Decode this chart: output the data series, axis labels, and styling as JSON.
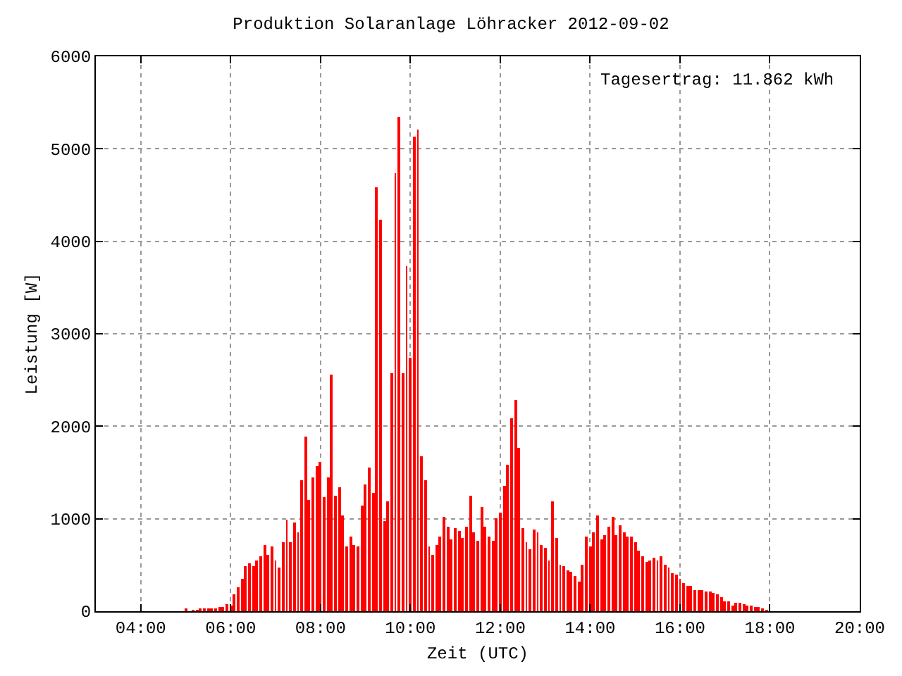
{
  "chart_data": {
    "type": "bar",
    "title": "Produktion Solaranlage Löhracker 2012-09-02",
    "xlabel": "Zeit (UTC)",
    "ylabel": "Leistung [W]",
    "annotations": [
      "Tagesertrag: 11.862 kWh"
    ],
    "x": [
      5,
      5.0833,
      5.1667,
      5.25,
      5.3333,
      5.4167,
      5.5,
      5.5833,
      5.6667,
      5.75,
      5.8333,
      5.9167,
      6,
      6.0833,
      6.1667,
      6.25,
      6.3333,
      6.4167,
      6.5,
      6.5833,
      6.6667,
      6.75,
      6.8333,
      6.9167,
      7,
      7.0833,
      7.1667,
      7.25,
      7.3333,
      7.4167,
      7.5,
      7.5833,
      7.6667,
      7.75,
      7.8333,
      7.9167,
      8,
      8.0833,
      8.1667,
      8.25,
      8.3333,
      8.4167,
      8.5,
      8.5833,
      8.6667,
      8.75,
      8.8333,
      8.9167,
      9,
      9.0833,
      9.1667,
      9.25,
      9.3333,
      9.4167,
      9.5,
      9.5833,
      9.6667,
      9.75,
      9.8333,
      9.9167,
      10,
      10.0833,
      10.1667,
      10.25,
      10.3333,
      10.4167,
      10.5,
      10.5833,
      10.6667,
      10.75,
      10.8333,
      10.9167,
      11,
      11.0833,
      11.1667,
      11.25,
      11.3333,
      11.4167,
      11.5,
      11.5833,
      11.6667,
      11.75,
      11.8333,
      11.9167,
      12,
      12.0833,
      12.1667,
      12.25,
      12.3333,
      12.4167,
      12.5,
      12.5833,
      12.6667,
      12.75,
      12.8333,
      12.9167,
      13,
      13.0833,
      13.1667,
      13.25,
      13.3333,
      13.4167,
      13.5,
      13.5833,
      13.6667,
      13.75,
      13.8333,
      13.9167,
      14,
      14.0833,
      14.1667,
      14.25,
      14.3333,
      14.4167,
      14.5,
      14.5833,
      14.6667,
      14.75,
      14.8333,
      14.9167,
      15,
      15.0833,
      15.1667,
      15.25,
      15.3333,
      15.4167,
      15.5,
      15.5833,
      15.6667,
      15.75,
      15.8333,
      15.9167,
      16,
      16.0833,
      16.1667,
      16.25,
      16.3333,
      16.4167,
      16.5,
      16.5833,
      16.6667,
      16.75,
      16.8333,
      16.9167,
      17,
      17.0833,
      17.1667,
      17.25,
      17.3333,
      17.4167,
      17.5,
      17.5833,
      17.6667,
      17.75,
      17.8333,
      17.9167
    ],
    "values": [
      25,
      null,
      15,
      15,
      20,
      30,
      30,
      30,
      30,
      45,
      45,
      80,
      60,
      180,
      255,
      345,
      495,
      520,
      480,
      555,
      600,
      720,
      615,
      705,
      555,
      465,
      750,
      990,
      750,
      960,
      860,
      1410,
      1890,
      1210,
      1440,
      1575,
      1620,
      1230,
      1440,
      2565,
      1245,
      1335,
      1035,
      705,
      810,
      720,
      705,
      1140,
      1365,
      1560,
      1275,
      4590,
      4230,
      975,
      1185,
      2580,
      4740,
      5340,
      2580,
      3735,
      2745,
      5130,
      5205,
      1680,
      1410,
      705,
      615,
      720,
      810,
      1020,
      915,
      780,
      900,
      870,
      795,
      915,
      1245,
      855,
      765,
      1125,
      915,
      810,
      765,
      1005,
      1065,
      1350,
      1590,
      2085,
      2280,
      1770,
      900,
      750,
      675,
      885,
      855,
      720,
      690,
      555,
      1185,
      795,
      510,
      480,
      435,
      420,
      375,
      315,
      510,
      810,
      705,
      855,
      1035,
      780,
      825,
      915,
      1020,
      825,
      930,
      855,
      810,
      810,
      750,
      660,
      600,
      540,
      555,
      585,
      555,
      600,
      510,
      465,
      405,
      390,
      345,
      300,
      270,
      270,
      225,
      225,
      225,
      210,
      210,
      195,
      180,
      150,
      105,
      105,
      60,
      90,
      90,
      75,
      60,
      60,
      45,
      45,
      30,
      15
    ],
    "color": "#ff0000",
    "xlim": [
      3,
      20
    ],
    "xticks": [
      {
        "value": 4,
        "label": "04:00"
      },
      {
        "value": 6,
        "label": "06:00"
      },
      {
        "value": 8,
        "label": "08:00"
      },
      {
        "value": 10,
        "label": "10:00"
      },
      {
        "value": 12,
        "label": "12:00"
      },
      {
        "value": 14,
        "label": "14:00"
      },
      {
        "value": 16,
        "label": "16:00"
      },
      {
        "value": 18,
        "label": "18:00"
      },
      {
        "value": 20,
        "label": "20:00"
      }
    ],
    "ylim": [
      0,
      6000
    ],
    "yticks": [
      0,
      1000,
      2000,
      3000,
      4000,
      5000,
      6000
    ],
    "grid": true
  }
}
